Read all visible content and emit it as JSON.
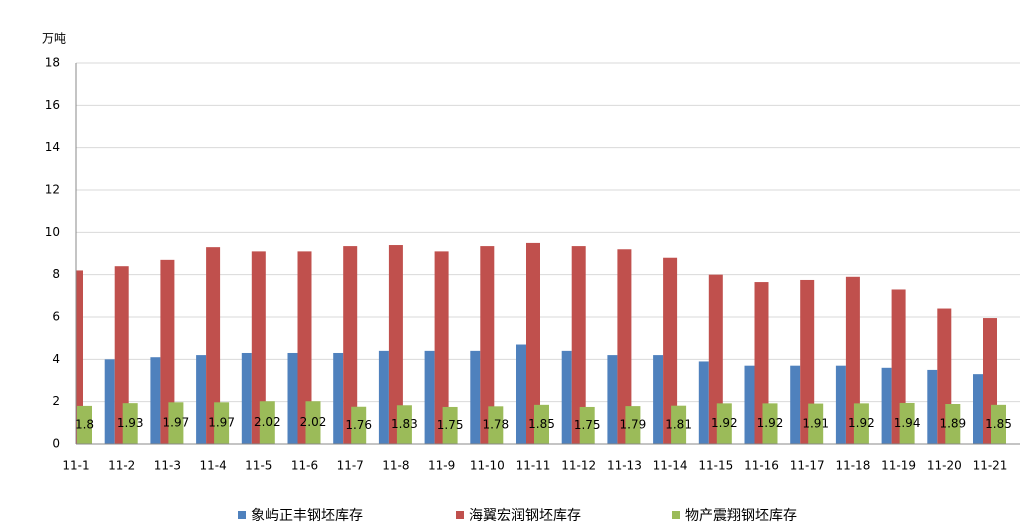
{
  "chart_data": {
    "type": "bar",
    "y_label": "万吨",
    "categories": [
      "11-1",
      "11-2",
      "11-3",
      "11-4",
      "11-5",
      "11-6",
      "11-7",
      "11-8",
      "11-9",
      "11-10",
      "11-11",
      "11-12",
      "11-13",
      "11-14",
      "11-15",
      "11-16",
      "11-17",
      "11-18",
      "11-19",
      "11-20",
      "11-21"
    ],
    "series": [
      {
        "name": "象屿正丰钢坯库存",
        "color": "#4f81bd",
        "values": [
          null,
          4.0,
          4.1,
          4.2,
          4.3,
          4.3,
          4.3,
          4.4,
          4.4,
          4.4,
          4.7,
          4.4,
          4.2,
          4.2,
          3.9,
          3.7,
          3.7,
          3.7,
          3.6,
          3.5,
          3.3
        ]
      },
      {
        "name": "海翼宏润钢坯库存",
        "color": "#c0504d",
        "values": [
          8.2,
          8.4,
          8.7,
          9.3,
          9.1,
          9.1,
          9.35,
          9.4,
          9.1,
          9.35,
          9.5,
          9.35,
          9.2,
          8.8,
          8.0,
          7.65,
          7.75,
          7.9,
          7.3,
          6.4,
          5.95
        ]
      },
      {
        "name": "物产震翔钢坯库存",
        "color": "#9bbb59",
        "values": [
          1.8,
          1.93,
          1.97,
          1.97,
          2.02,
          2.02,
          1.76,
          1.83,
          1.75,
          1.78,
          1.85,
          1.75,
          1.79,
          1.81,
          1.92,
          1.92,
          1.91,
          1.92,
          1.94,
          1.89,
          1.85
        ],
        "show_labels": true
      }
    ],
    "ylim": [
      0,
      18
    ],
    "yticks": [
      0,
      2,
      4,
      6,
      8,
      10,
      12,
      14,
      16,
      18
    ],
    "grid": true
  }
}
